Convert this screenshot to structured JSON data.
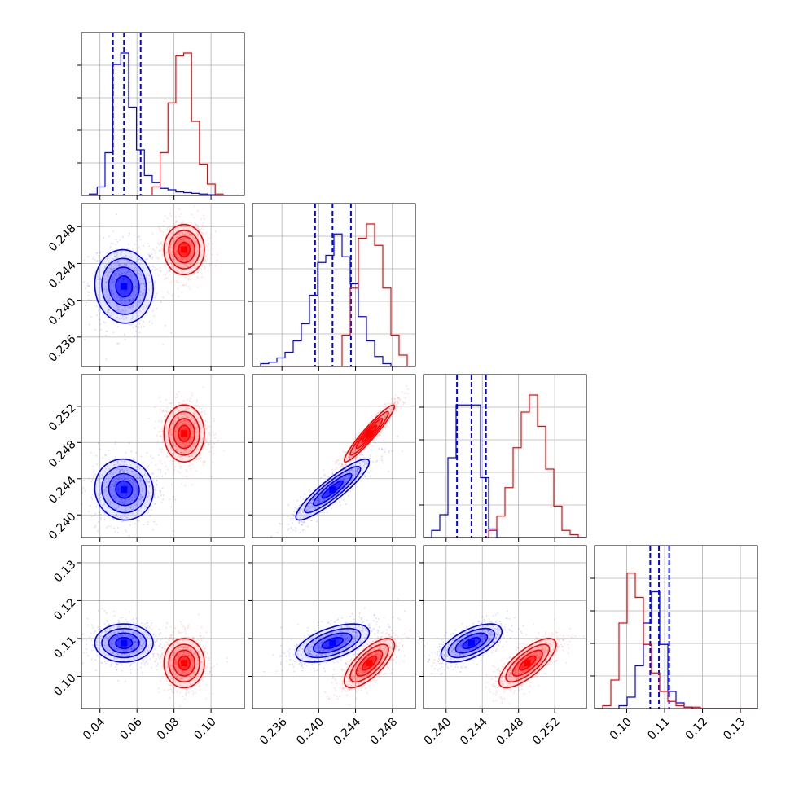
{
  "chart_data": {
    "type": "corner",
    "title": "",
    "grid": true,
    "parameters": [
      {
        "key": "p0",
        "label": "",
        "range": [
          0.03,
          0.118
        ],
        "ticks": [
          0.04,
          0.06,
          0.08,
          0.1
        ],
        "tick_labels": [
          "0.04",
          "0.06",
          "0.08",
          "0.10"
        ]
      },
      {
        "key": "p1",
        "label": "",
        "range": [
          0.2328,
          0.2505
        ],
        "ticks": [
          0.236,
          0.24,
          0.244,
          0.248
        ],
        "tick_labels": [
          "0.236",
          "0.240",
          "0.244",
          "0.248"
        ]
      },
      {
        "key": "p2",
        "label": "",
        "range": [
          0.2375,
          0.2555
        ],
        "ticks": [
          0.24,
          0.244,
          0.248,
          0.252
        ],
        "tick_labels": [
          "0.240",
          "0.244",
          "0.248",
          "0.252"
        ]
      },
      {
        "key": "p3",
        "label": "",
        "range": [
          0.0915,
          0.1345
        ],
        "ticks": [
          0.1,
          0.11,
          0.12,
          0.13
        ],
        "tick_labels": [
          "0.10",
          "0.11",
          "0.12",
          "0.13"
        ]
      }
    ],
    "series": [
      {
        "color": "#0000ff",
        "quantiles_dashed": true,
        "means": [
          0.053,
          0.2415,
          0.2428,
          0.1088
        ],
        "sigmas": [
          0.0075,
          0.0019,
          0.0016,
          0.0024
        ],
        "correlations": {
          "1-0": -0.05,
          "2-0": -0.05,
          "2-1": 0.9,
          "3-0": 0.0,
          "3-1": 0.55,
          "3-2": 0.6
        },
        "quantiles": [
          [
            0.047,
            0.053,
            0.062
          ],
          [
            0.2396,
            0.2415,
            0.2435
          ],
          [
            0.2412,
            0.2428,
            0.2444
          ],
          [
            0.1062,
            0.1085,
            0.1112
          ]
        ],
        "histograms": [
          {
            "edges_from": 0.03,
            "bin_width": 0.00425,
            "counts": [
              0.0,
              0.01,
              0.06,
              0.3,
              0.92,
              1.0,
              0.62,
              0.32,
              0.14,
              0.09,
              0.05,
              0.04,
              0.025,
              0.02,
              0.015,
              0.01,
              0.005,
              0.0,
              0.0,
              0.0
            ]
          },
          {
            "edges_from": 0.2328,
            "bin_width": 0.000885,
            "counts": [
              0.0,
              0.02,
              0.03,
              0.06,
              0.1,
              0.18,
              0.3,
              0.5,
              0.73,
              0.78,
              0.93,
              0.77,
              0.58,
              0.35,
              0.18,
              0.07,
              0.02,
              0.0,
              0.0,
              0.0
            ]
          },
          {
            "edges_from": 0.2375,
            "bin_width": 0.0009,
            "counts": [
              0.0,
              0.05,
              0.16,
              0.56,
              0.93,
              0.93,
              0.93,
              0.42,
              0.06,
              0.0,
              0.0,
              0.0,
              0.0,
              0.0,
              0.0,
              0.0,
              0.0,
              0.0,
              0.0,
              0.0
            ]
          },
          {
            "edges_from": 0.0915,
            "bin_width": 0.00215,
            "counts": [
              0.0,
              0.0,
              0.0,
              0.02,
              0.08,
              0.3,
              0.6,
              0.82,
              0.45,
              0.12,
              0.04,
              0.01,
              0.0,
              0.0,
              0.0,
              0.0,
              0.0,
              0.0,
              0.0,
              0.0
            ]
          }
        ]
      },
      {
        "color": "#ff0000",
        "quantiles_dashed": false,
        "means": [
          0.0855,
          0.2455,
          0.249,
          0.1035
        ],
        "sigmas": [
          0.0052,
          0.0013,
          0.0015,
          0.0031
        ],
        "correlations": {
          "1-0": 0.0,
          "2-0": 0.0,
          "2-1": 0.95,
          "3-0": 0.0,
          "3-1": 0.72,
          "3-2": 0.75
        },
        "quantiles": [],
        "histograms": [
          {
            "edges_from": 0.03,
            "bin_width": 0.00425,
            "counts": [
              0.0,
              0.0,
              0.0,
              0.0,
              0.0,
              0.0,
              0.0,
              0.0,
              0.0,
              0.06,
              0.3,
              0.65,
              0.98,
              1.0,
              0.52,
              0.22,
              0.08,
              0.01,
              0.0,
              0.0
            ]
          },
          {
            "edges_from": 0.2328,
            "bin_width": 0.000885,
            "counts": [
              0.0,
              0.0,
              0.0,
              0.0,
              0.0,
              0.0,
              0.0,
              0.0,
              0.0,
              0.0,
              0.0,
              0.22,
              0.55,
              0.9,
              1.0,
              0.85,
              0.55,
              0.22,
              0.08,
              0.0
            ]
          },
          {
            "edges_from": 0.2375,
            "bin_width": 0.0009,
            "counts": [
              0.0,
              0.0,
              0.0,
              0.0,
              0.0,
              0.0,
              0.0,
              0.0,
              0.05,
              0.15,
              0.35,
              0.63,
              0.88,
              1.0,
              0.78,
              0.48,
              0.22,
              0.05,
              0.02,
              0.0
            ]
          },
          {
            "edges_from": 0.0915,
            "bin_width": 0.00215,
            "counts": [
              0.0,
              0.02,
              0.2,
              0.6,
              0.95,
              0.78,
              0.45,
              0.25,
              0.12,
              0.05,
              0.02,
              0.01,
              0.01,
              0.0,
              0.0,
              0.0,
              0.0,
              0.0,
              0.0,
              0.0
            ]
          }
        ]
      }
    ]
  }
}
